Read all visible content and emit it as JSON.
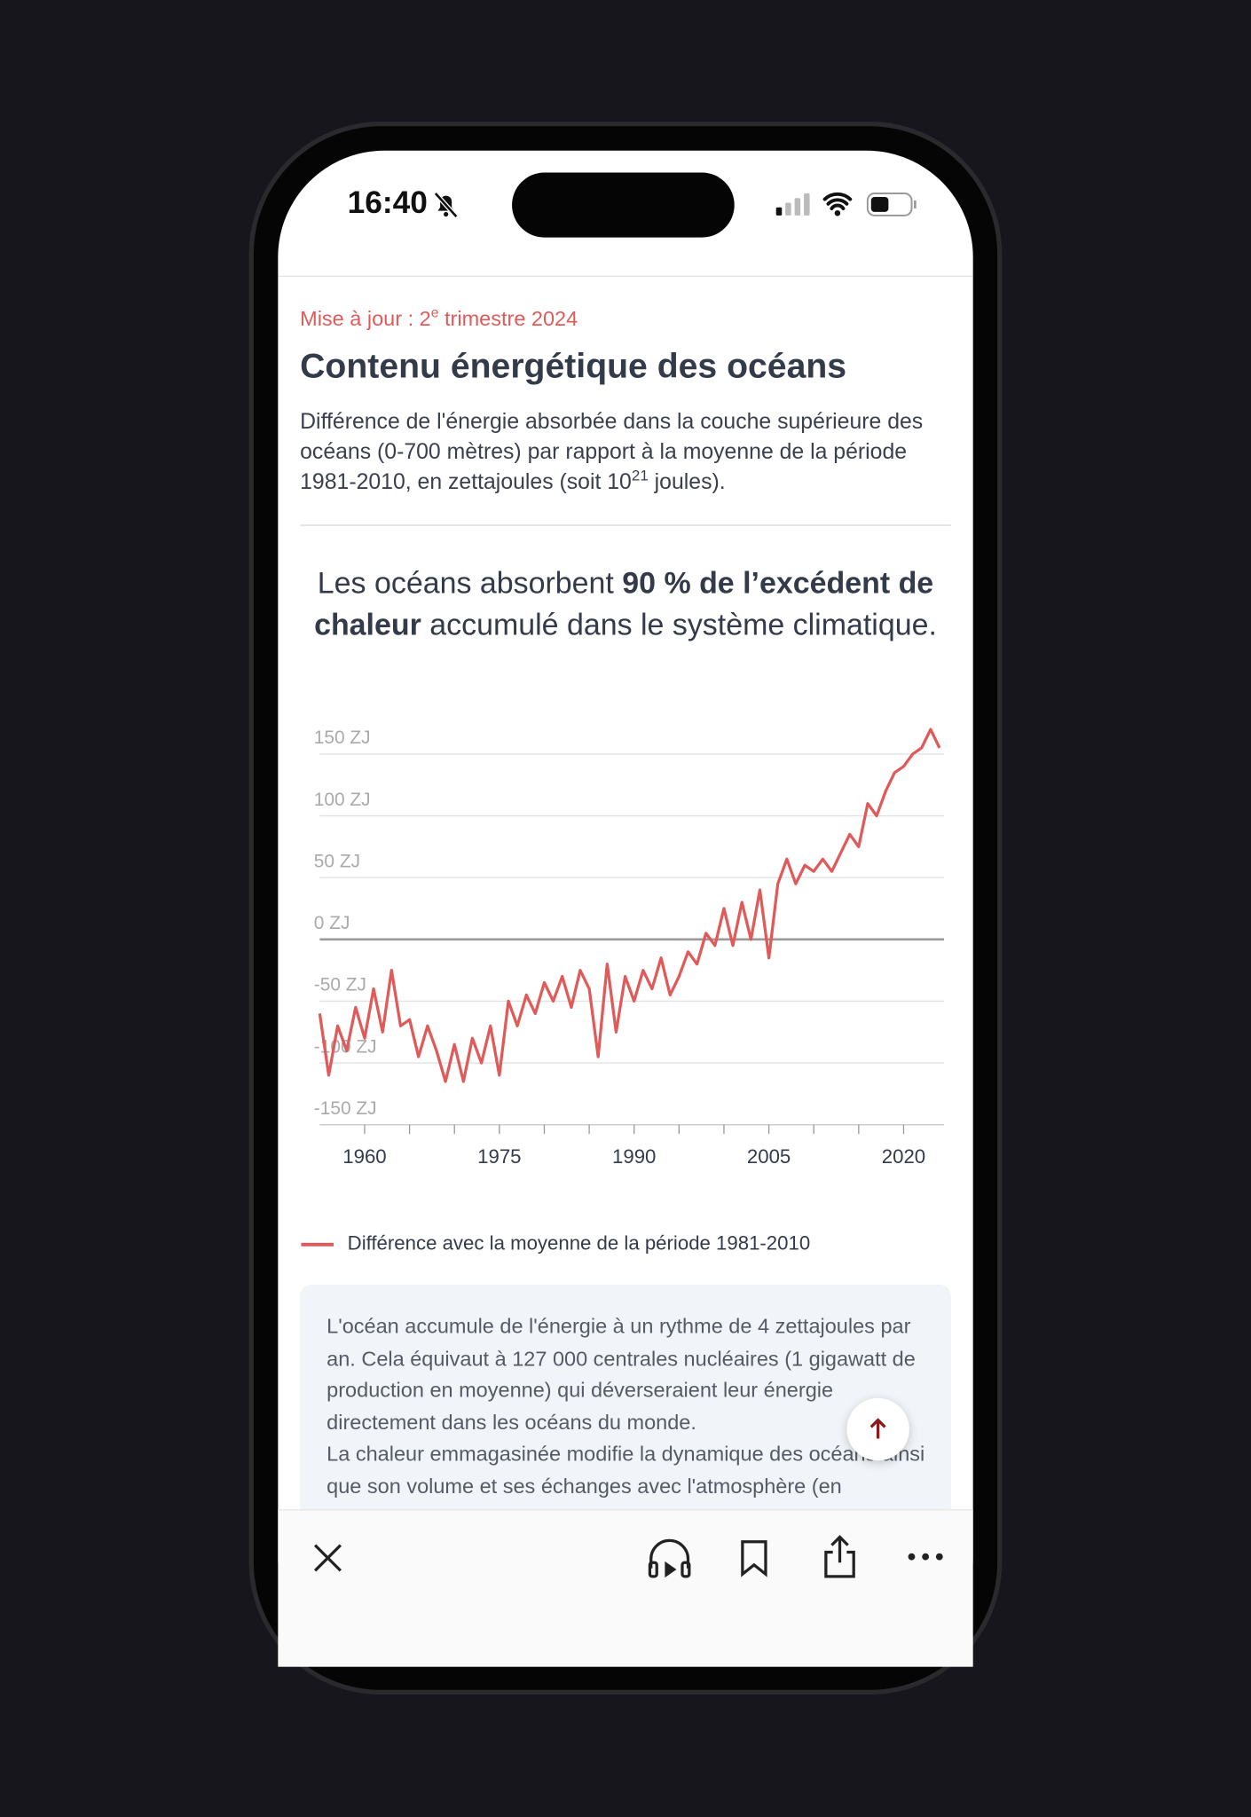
{
  "status": {
    "time": "16:40"
  },
  "header": {
    "update": [
      "Mise à jour : 2",
      "e",
      " trimestre 2024"
    ],
    "title": "Contenu énergétique des océans",
    "subtitle": [
      "Différence de l'énergie absorbée dans la couche supérieure des océans (0-700 mètres) par rapport à la moyenne de la période 1981-2010, en zettajoules (soit 10",
      "21",
      " joules)."
    ]
  },
  "headline": {
    "parts": [
      "Les océans absorbent ",
      "90 % de l’excédent de chaleur",
      " accumulé dans le système climatique."
    ]
  },
  "chart_data": {
    "type": "line",
    "x": [
      1955,
      1956,
      1957,
      1958,
      1959,
      1960,
      1961,
      1962,
      1963,
      1964,
      1965,
      1966,
      1967,
      1968,
      1969,
      1970,
      1971,
      1972,
      1973,
      1974,
      1975,
      1976,
      1977,
      1978,
      1979,
      1980,
      1981,
      1982,
      1983,
      1984,
      1985,
      1986,
      1987,
      1988,
      1989,
      1990,
      1991,
      1992,
      1993,
      1994,
      1995,
      1996,
      1997,
      1998,
      1999,
      2000,
      2001,
      2002,
      2003,
      2004,
      2005,
      2006,
      2007,
      2008,
      2009,
      2010,
      2011,
      2012,
      2013,
      2014,
      2015,
      2016,
      2017,
      2018,
      2019,
      2020,
      2021,
      2022,
      2023,
      2024
    ],
    "series": [
      {
        "name": "Différence avec la moyenne de la période 1981-2010",
        "color": "#e05a5a",
        "values": [
          -60,
          -110,
          -70,
          -90,
          -55,
          -80,
          -40,
          -75,
          -25,
          -70,
          -65,
          -95,
          -70,
          -90,
          -115,
          -85,
          -115,
          -80,
          -100,
          -70,
          -110,
          -50,
          -70,
          -45,
          -60,
          -35,
          -50,
          -30,
          -55,
          -25,
          -40,
          -95,
          -20,
          -75,
          -30,
          -50,
          -25,
          -40,
          -15,
          -45,
          -30,
          -10,
          -20,
          5,
          -5,
          25,
          -5,
          30,
          0,
          40,
          -15,
          45,
          65,
          45,
          60,
          55,
          65,
          55,
          70,
          85,
          75,
          110,
          100,
          120,
          135,
          140,
          150,
          155,
          170,
          155
        ]
      }
    ],
    "xlim": [
      1955,
      2024.5
    ],
    "xticks": [
      1960,
      1975,
      1990,
      2005,
      2020
    ],
    "xminor_ticks": [
      1965,
      1970,
      1980,
      1985,
      1995,
      2000,
      2010,
      2015
    ],
    "ylim": [
      -150,
      150
    ],
    "yticks": [
      {
        "value": -150,
        "label": "-150 ZJ"
      },
      {
        "value": -100,
        "label": "-100 ZJ"
      },
      {
        "value": -50,
        "label": "-50 ZJ"
      },
      {
        "value": 0,
        "label": "0 ZJ"
      },
      {
        "value": 50,
        "label": "50 ZJ"
      },
      {
        "value": 100,
        "label": "100 ZJ"
      },
      {
        "value": 150,
        "label": "150 ZJ"
      }
    ],
    "grid": true
  },
  "note": {
    "paragraphs": [
      "L'océan accumule de l'énergie à un rythme de 4 zettajoules par an. Cela équivaut à 127 000 centrales nucléaires (1 gigawatt de production en moyenne) qui déverseraient leur énergie directement dans les océans du monde.",
      "La chaleur emmagasinée modifie la dynamique des océans ainsi que son volume et ses échanges avec l'atmosphère (en"
    ]
  }
}
